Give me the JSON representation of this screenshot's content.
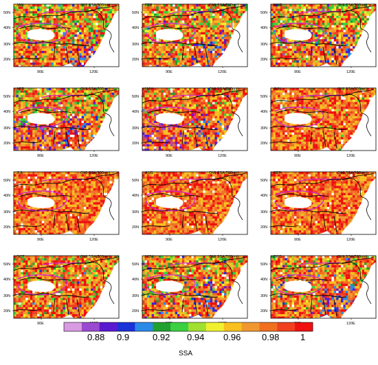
{
  "map_panels": [
    {
      "month": "JAN",
      "product": "OMI SSA(500nm)",
      "green": 0.22,
      "blue": 0.06,
      "purple": 0.0
    },
    {
      "month": "FEB",
      "product": "OMI SSA(500nm)",
      "green": 0.22,
      "blue": 0.05,
      "purple": 0.0
    },
    {
      "month": "MAR",
      "product": "OMI SSA(500nm)",
      "green": 0.26,
      "blue": 0.05,
      "purple": 0.02
    },
    {
      "month": "APR",
      "product": "OMI SSA(500nm)",
      "green": 0.18,
      "blue": 0.06,
      "purple": 0.05
    },
    {
      "month": "MAY",
      "product": "OMI SSA(500nm)",
      "green": 0.1,
      "blue": 0.04,
      "purple": 0.05
    },
    {
      "month": "JUN",
      "product": "OMI SSA(500nm)",
      "green": 0.03,
      "blue": 0.0,
      "purple": 0.0
    },
    {
      "month": "JUL",
      "product": "OMI SSA(500nm)",
      "green": 0.0,
      "blue": 0.0,
      "purple": 0.0
    },
    {
      "month": "AUG",
      "product": "OMI SSA(500nm)",
      "green": 0.0,
      "blue": 0.0,
      "purple": 0.0
    },
    {
      "month": "SEP",
      "product": "OMI SSA(500nm)",
      "green": 0.0,
      "blue": 0.0,
      "purple": 0.0
    },
    {
      "month": "OCT",
      "product": "OMI SSA(500nm)",
      "green": 0.14,
      "blue": 0.01,
      "purple": 0.0
    },
    {
      "month": "NOV",
      "product": "OMI SSA(500nm)",
      "green": 0.2,
      "blue": 0.06,
      "purple": 0.0
    },
    {
      "month": "DEC",
      "product": "OMI SSA(500nm)",
      "green": 0.15,
      "blue": 0.07,
      "purple": 0.0
    }
  ],
  "lat_labels": [
    "50N",
    "40N",
    "30N",
    "20N"
  ],
  "lon_labels": [
    "90E",
    "120E"
  ],
  "colorbar": {
    "label": "SSA",
    "colors": [
      "#d89ae0",
      "#9a4ad0",
      "#5a1ad0",
      "#1a32d8",
      "#2a8ae8",
      "#20a030",
      "#3ad040",
      "#a0e030",
      "#f0f030",
      "#f8c020",
      "#f09830",
      "#f07020",
      "#f04020",
      "#f01010"
    ],
    "tick_labels": [
      "0.88",
      "0.9",
      "0.92",
      "0.94",
      "0.96",
      "0.98",
      "1"
    ]
  }
}
